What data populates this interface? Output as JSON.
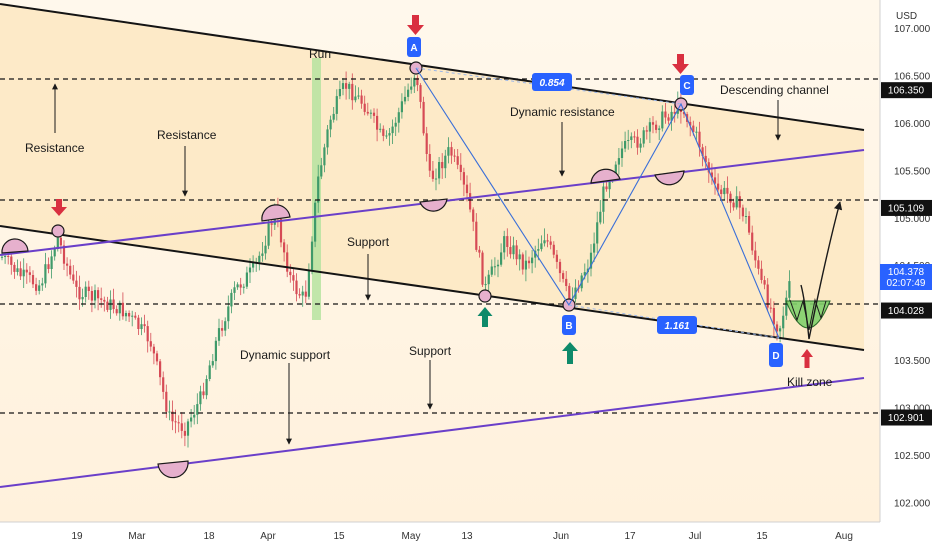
{
  "currency": "USD",
  "clock": "02:07:49",
  "colors": {
    "channel_fill": "#fde7c2",
    "purple_line": "#6a3fc9",
    "black_line": "#141414",
    "pattern_line": "#3a6fd8",
    "label_blue": "#2962ff",
    "arrow_red": "#d93040",
    "arrow_green": "#0e8a6a",
    "candle_up": "#3f9a6a",
    "candle_down": "#d64a55",
    "run_zone": "#b6e3a0",
    "kill_zone": "#7fcf6a",
    "circle_fill": "#e6b0cd"
  },
  "chart_data": {
    "type": "candlestick",
    "currency": "USD",
    "ylim": [
      101.8,
      107.3
    ],
    "x_ticks": [
      "19",
      "Mar",
      "18",
      "Apr",
      "15",
      "May",
      "13",
      "Jun",
      "17",
      "Jul",
      "15",
      "Aug"
    ],
    "y_ticks": [
      "107.000",
      "106.500",
      "106.000",
      "105.500",
      "105.000",
      "104.500",
      "104.000",
      "103.500",
      "103.000",
      "102.500",
      "102.000"
    ],
    "price_tags": [
      {
        "label": "106.350",
        "value": 106.35
      },
      {
        "label": "105.109",
        "value": 105.109
      },
      {
        "label": "104.028",
        "value": 104.028
      },
      {
        "label": "102.901",
        "value": 102.901
      }
    ],
    "current_price_tag": {
      "label": "104.378",
      "value": 104.378
    },
    "pattern_points": [
      {
        "label": "A",
        "value": 106.45
      },
      {
        "label": "B",
        "value": 104.0
      },
      {
        "label": "C",
        "value": 106.15
      },
      {
        "label": "D",
        "value": 103.75
      }
    ],
    "ratios": [
      "0.854",
      "1.161"
    ],
    "annotations": [
      "Run",
      "Resistance",
      "Resistance",
      "Support",
      "Dynamic resistance",
      "Descending channel",
      "Dynamic support",
      "Support",
      "Kill zone"
    ]
  }
}
